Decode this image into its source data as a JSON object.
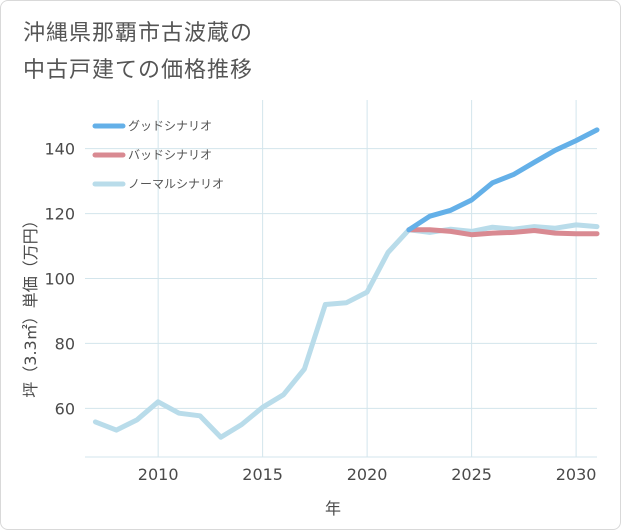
{
  "title": {
    "line1": "沖縄県那覇市古波蔵の",
    "line2": "中古戸建ての価格推移"
  },
  "chart_data": {
    "type": "line",
    "xlabel": "年",
    "ylabel": "坪（3.3㎡）単価（万円）",
    "xlim": [
      2006.5,
      2031
    ],
    "ylim": [
      45,
      155
    ],
    "xticks": [
      2010,
      2015,
      2020,
      2025,
      2030
    ],
    "yticks": [
      60,
      80,
      100,
      120,
      140
    ],
    "xtick_labels": [
      "2010",
      "2015",
      "2020",
      "2025",
      "2030"
    ],
    "ytick_labels": [
      "60",
      "80",
      "100",
      "120",
      "140"
    ],
    "grid": true,
    "legend_position": "top-left",
    "series": [
      {
        "name": "グッドシナリオ",
        "color": "#64b0e8",
        "x": [
          2022,
          2023,
          2024,
          2025,
          2026,
          2027,
          2028,
          2029,
          2030,
          2031
        ],
        "values": [
          115,
          119.2,
          121,
          124.2,
          129.5,
          132,
          135.8,
          139.5,
          142.5,
          145.8
        ]
      },
      {
        "name": "バッドシナリオ",
        "color": "#d98a92",
        "x": [
          2022,
          2023,
          2024,
          2025,
          2026,
          2027,
          2028,
          2029,
          2030,
          2031
        ],
        "values": [
          115,
          115,
          114.5,
          113.5,
          114,
          114.2,
          114.8,
          114,
          113.8,
          113.8
        ]
      },
      {
        "name": "ノーマルシナリオ",
        "color": "#b9dcea",
        "x": [
          2007,
          2008,
          2009,
          2010,
          2011,
          2012,
          2013,
          2014,
          2015,
          2016,
          2017,
          2018,
          2019,
          2020,
          2021,
          2022,
          2023,
          2024,
          2025,
          2026,
          2027,
          2028,
          2029,
          2030,
          2031
        ],
        "values": [
          55.8,
          53.3,
          56.5,
          62,
          58.5,
          57.7,
          51.1,
          55,
          60.3,
          64.2,
          72.1,
          92,
          92.5,
          95.8,
          108,
          115,
          114.2,
          115.2,
          114.5,
          115.8,
          115.2,
          116,
          115.5,
          116.5,
          116
        ]
      }
    ]
  }
}
